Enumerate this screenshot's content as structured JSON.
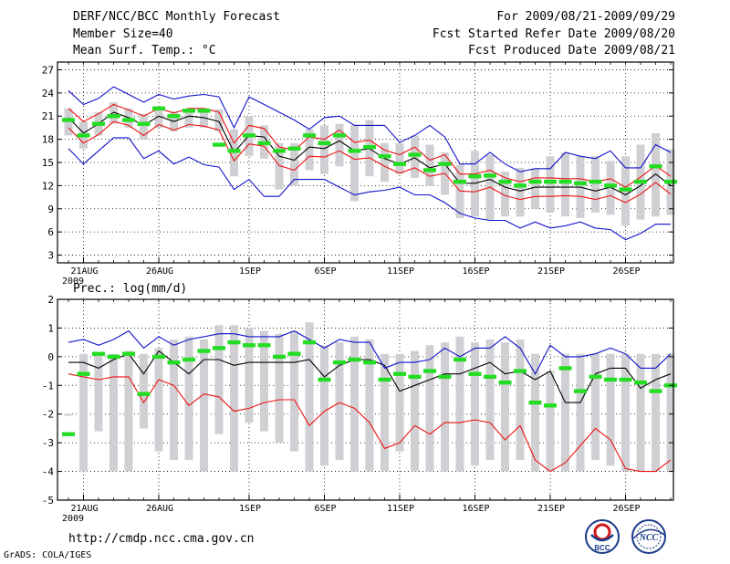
{
  "header": {
    "title": "DERF/NCC/BCC Monthly Forecast",
    "member_size": "Member Size=40",
    "variable": "Mean Surf. Temp.: °C",
    "period": "For 2009/08/21-2009/09/29",
    "started": "Fcst Started Refer Date 2009/08/20",
    "produced": "Fcst Produced Date 2009/08/21"
  },
  "footer": {
    "url": "http://cmdp.ncc.cma.gov.cn",
    "credit": "GrADS: COLA/IGES",
    "logo1_text": "BCC",
    "logo2_text": "NCC"
  },
  "colors": {
    "bar": "#d0d0d4",
    "mean": "#000000",
    "spread": "#ee1111",
    "envelope": "#1111cc",
    "obs": "#22dd22",
    "grid": "#000000"
  },
  "chart_data": [
    {
      "type": "line",
      "title": "Mean Surf. Temp.: °C",
      "xlabel": "",
      "ylabel": "",
      "ylim": [
        2,
        28
      ],
      "yticks": [
        3,
        6,
        9,
        12,
        15,
        18,
        21,
        24,
        27
      ],
      "xticks": [
        "21AUG",
        "26AUG",
        "1SEP",
        "6SEP",
        "11SEP",
        "16SEP",
        "21SEP",
        "26SEP"
      ],
      "xtick_days": [
        1,
        6,
        12,
        17,
        22,
        27,
        32,
        37
      ],
      "year_label": "2009",
      "days": 40,
      "series": [
        {
          "name": "ensemble mean",
          "values": [
            20.8,
            18.8,
            20,
            21.5,
            20.8,
            19.8,
            21,
            20.3,
            21,
            20.8,
            20.3,
            16.3,
            18.5,
            18.3,
            15.8,
            15.3,
            17,
            16.8,
            17.8,
            16.5,
            16.8,
            15.5,
            14.8,
            15.6,
            14.3,
            14.8,
            12.3,
            12.3,
            12.8,
            11.8,
            11.3,
            11.8,
            11.8,
            11.8,
            11.8,
            11.3,
            11.8,
            10.8,
            12,
            13.5,
            12
          ]
        },
        {
          "name": "mean + spread",
          "values": [
            22,
            20.3,
            21.3,
            22.5,
            21.8,
            21,
            22,
            21.4,
            22,
            22,
            21.5,
            17.5,
            19.8,
            19.4,
            17,
            16.6,
            18.3,
            18,
            19.2,
            17.6,
            17.9,
            16.6,
            16,
            17,
            15.3,
            16,
            13.5,
            13.5,
            14,
            13,
            12.5,
            13,
            13,
            12.9,
            12.9,
            12.5,
            12.9,
            11.8,
            13.1,
            14.6,
            13.2
          ]
        },
        {
          "name": "mean - spread",
          "values": [
            19.5,
            17.5,
            18.6,
            20.3,
            19.8,
            18.5,
            19.9,
            19.2,
            19.9,
            19.7,
            19.2,
            15.2,
            17.4,
            17.1,
            14.6,
            14,
            15.8,
            15.7,
            16.5,
            15.4,
            15.6,
            14.5,
            13.6,
            14.3,
            13.2,
            13.6,
            11.3,
            11.2,
            11.8,
            10.7,
            10.2,
            10.6,
            10.6,
            10.7,
            10.6,
            10.2,
            10.7,
            9.8,
            10.9,
            12.4,
            10.9
          ]
        },
        {
          "name": "ensemble max",
          "values": [
            24.3,
            22.5,
            23.3,
            24.8,
            23.8,
            22.8,
            23.8,
            23.2,
            23.6,
            23.8,
            23.5,
            19.5,
            23.5,
            22.5,
            21.5,
            20.5,
            19.3,
            20.8,
            21,
            19.8,
            19.8,
            19.8,
            17.6,
            18.5,
            19.8,
            18.3,
            14.8,
            14.8,
            16.3,
            14.8,
            13.8,
            14.2,
            14.2,
            16.3,
            15.8,
            15.5,
            16.5,
            14.3,
            14.3,
            17.3,
            16.3
          ]
        },
        {
          "name": "ensemble min",
          "values": [
            16.8,
            14.8,
            16.5,
            18.2,
            18.2,
            15.5,
            16.5,
            14.8,
            15.7,
            14.7,
            14.4,
            11.5,
            12.8,
            10.6,
            10.6,
            12.8,
            12.8,
            12.8,
            11.8,
            10.8,
            11.2,
            11.4,
            11.8,
            10.8,
            10.8,
            9.8,
            8.4,
            7.8,
            7.5,
            7.5,
            6.5,
            7.3,
            6.5,
            6.8,
            7.3,
            6.5,
            6.3,
            5.0,
            5.8,
            7.0,
            7.0
          ]
        }
      ],
      "bars_low": [
        18.5,
        16.8,
        18.5,
        20,
        19.5,
        18,
        19.5,
        19,
        19.5,
        19.5,
        19,
        13.2,
        15.8,
        15.5,
        11.5,
        12,
        14,
        13.5,
        14.5,
        10,
        13.2,
        12.5,
        13.5,
        13,
        12,
        10.8,
        7.8,
        8,
        7.6,
        8,
        8,
        9,
        8.5,
        8,
        7.8,
        8.5,
        8.2,
        6.8,
        7.6,
        8,
        8.2
      ],
      "bars_high": [
        22,
        20.3,
        21.5,
        22.8,
        22,
        21.3,
        22,
        21.6,
        22,
        22,
        21.9,
        19.3,
        21,
        19.8,
        17.5,
        17.5,
        19.3,
        19.8,
        20,
        19.8,
        20.5,
        17.5,
        17.5,
        18.5,
        17.3,
        16.3,
        14.7,
        16.5,
        16,
        13.8,
        14.3,
        14.2,
        15.8,
        16.3,
        15.8,
        15.8,
        15.2,
        15.8,
        17.3,
        18.8,
        16.7
      ],
      "obs": [
        20.5,
        18.5,
        20,
        21,
        20.5,
        20,
        22,
        21,
        21.7,
        21.7,
        17.3,
        16.5,
        18.5,
        17.5,
        16.5,
        16.8,
        18.5,
        17.5,
        18.5,
        16.5,
        17,
        15.8,
        14.8,
        16,
        14,
        14.8,
        12.5,
        13.2,
        13.3,
        12.5,
        12,
        12.5,
        12.5,
        12.5,
        12.3,
        12.5,
        12,
        11.5,
        12.5,
        14.5,
        12.5
      ]
    },
    {
      "type": "line",
      "title": "Prec.: log(mm/d)",
      "xlabel": "",
      "ylabel": "",
      "ylim": [
        -5,
        2
      ],
      "yticks": [
        -5,
        -4,
        -3,
        -2,
        -1,
        0,
        1,
        2
      ],
      "xticks": [
        "21AUG",
        "26AUG",
        "1SEP",
        "6SEP",
        "11SEP",
        "16SEP",
        "21SEP",
        "26SEP"
      ],
      "xtick_days": [
        1,
        6,
        12,
        17,
        22,
        27,
        32,
        37
      ],
      "year_label": "2009",
      "days": 40,
      "series": [
        {
          "name": "ensemble mean",
          "values": [
            -0.2,
            -0.2,
            -0.4,
            -0.1,
            0.1,
            -0.6,
            0.2,
            -0.2,
            -0.6,
            -0.1,
            -0.1,
            -0.3,
            -0.2,
            -0.2,
            -0.2,
            -0.2,
            -0.1,
            -0.7,
            -0.3,
            -0.1,
            -0.1,
            -0.3,
            -1.2,
            -1.0,
            -0.8,
            -0.6,
            -0.6,
            -0.4,
            -0.2,
            -0.6,
            -0.5,
            -0.8,
            -0.5,
            -1.6,
            -1.6,
            -0.6,
            -0.4,
            -0.4,
            -1.1,
            -0.8,
            -0.6
          ]
        },
        {
          "name": "ensemble min",
          "values": [
            -0.6,
            -0.7,
            -0.8,
            -0.7,
            -0.7,
            -1.6,
            -0.8,
            -1.0,
            -1.7,
            -1.3,
            -1.4,
            -1.9,
            -1.8,
            -1.6,
            -1.5,
            -1.5,
            -2.4,
            -1.9,
            -1.6,
            -1.8,
            -2.3,
            -3.2,
            -3.0,
            -2.4,
            -2.7,
            -2.3,
            -2.3,
            -2.2,
            -2.3,
            -2.9,
            -2.4,
            -3.6,
            -4.0,
            -3.7,
            -3.1,
            -2.5,
            -2.9,
            -3.9,
            -4.0,
            -4.0,
            -3.6
          ]
        },
        {
          "name": "ensemble max",
          "values": [
            0.5,
            0.6,
            0.4,
            0.6,
            0.9,
            0.3,
            0.7,
            0.4,
            0.6,
            0.7,
            0.8,
            0.8,
            0.7,
            0.7,
            0.7,
            0.9,
            0.6,
            0.3,
            0.6,
            0.5,
            0.5,
            -0.4,
            -0.2,
            -0.2,
            -0.1,
            0.3,
            0.0,
            0.3,
            0.3,
            0.7,
            0.3,
            -0.6,
            0.4,
            0.0,
            0.0,
            0.1,
            0.3,
            0.1,
            -0.4,
            -0.4,
            0.1
          ]
        }
      ],
      "floor": -4,
      "bars_low": [
        -2,
        -4,
        -2.6,
        -4,
        -4,
        -2.5,
        -3.3,
        -3.6,
        -3.6,
        -4,
        -2.7,
        -4,
        -2.3,
        -2.6,
        -3,
        -3.3,
        -4,
        -3.8,
        -3.6,
        -4,
        -4,
        -4,
        -3.3,
        -4,
        -4,
        -4,
        -4,
        -3.8,
        -3.6,
        -4,
        -3.6,
        -4,
        -4,
        -4,
        -4,
        -3.6,
        -3.8,
        -4,
        -4,
        -4,
        -4
      ],
      "bars_high": [
        -2,
        0.1,
        0.1,
        0.1,
        0.2,
        0.1,
        0.3,
        0.6,
        0.7,
        0.6,
        1.1,
        1.1,
        1.0,
        0.9,
        0.8,
        0.9,
        1.2,
        0.4,
        0.5,
        0.7,
        0.6,
        0.1,
        0.1,
        0.2,
        0.4,
        0.5,
        0.7,
        0.5,
        0.6,
        0.5,
        0.6,
        0.1,
        -0.5,
        0.1,
        0.1,
        0.1,
        0.1,
        0.1,
        0.1,
        0.1,
        0.1
      ],
      "obs": [
        -2.7,
        -0.6,
        0.1,
        0.0,
        0.1,
        -1.3,
        0.0,
        -0.2,
        -0.1,
        0.2,
        0.3,
        0.5,
        0.4,
        0.4,
        0.0,
        0.1,
        0.5,
        -0.8,
        -0.2,
        -0.1,
        -0.2,
        -0.8,
        -0.6,
        -0.7,
        -0.5,
        -0.7,
        -0.1,
        -0.6,
        -0.7,
        -0.9,
        -0.5,
        -1.6,
        -1.7,
        -0.4,
        -1.2,
        -0.7,
        -0.8,
        -0.8,
        -0.9,
        -1.2,
        -1.0
      ]
    }
  ]
}
